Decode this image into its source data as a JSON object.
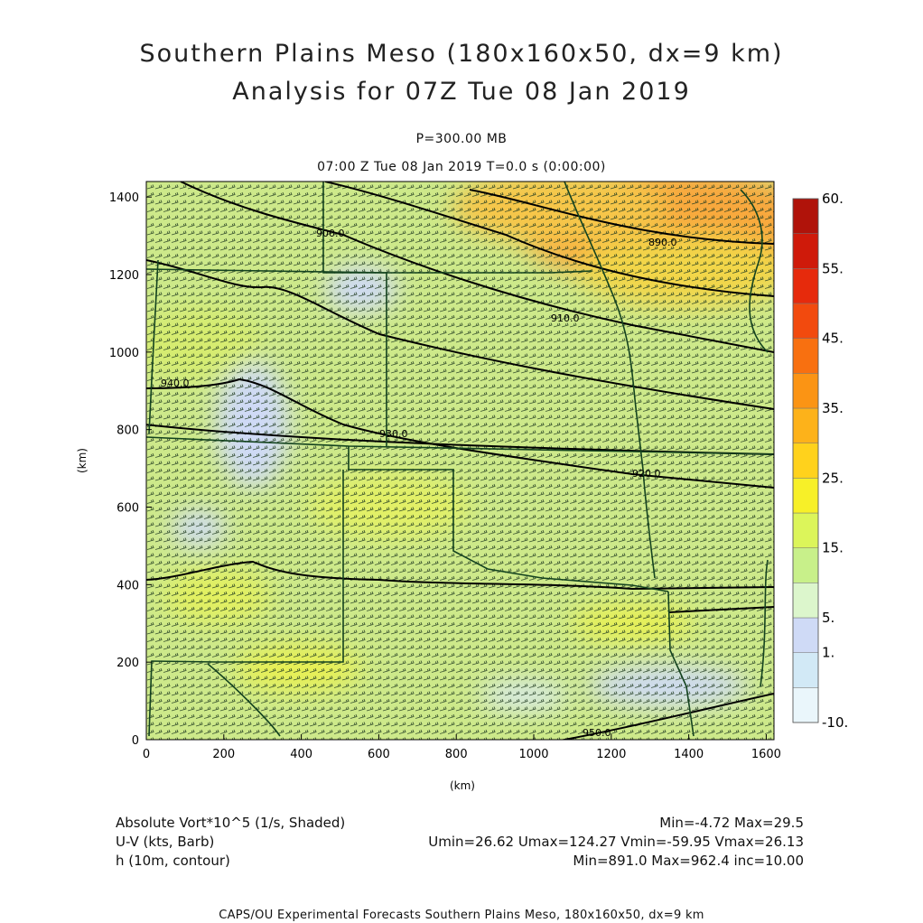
{
  "header": {
    "title": "Southern Plains Meso (180x160x50, dx=9 km)",
    "subtitle": "Analysis for 07Z Tue 08 Jan 2019",
    "level": "P=300.00 MB",
    "time": "07:00 Z Tue 08 Jan 2019    T=0.0 s (0:00:00)"
  },
  "chart_data": {
    "type": "heatmap",
    "xlabel": "(km)",
    "ylabel": "(km)",
    "xlim": [
      0,
      1620
    ],
    "ylim": [
      0,
      1440
    ],
    "x_ticks": [
      "0",
      "200",
      "400",
      "600",
      "800",
      "1000",
      "1200",
      "1400",
      "1600"
    ],
    "y_ticks": [
      "0",
      "200",
      "400",
      "600",
      "800",
      "1000",
      "1200",
      "1400"
    ],
    "colorbar": {
      "labels": [
        "-10.",
        "1.",
        "5.",
        "15.",
        "25.",
        "35.",
        "45.",
        "55.",
        "60."
      ],
      "colors": [
        "#eaf6fb",
        "#d2e9f6",
        "#cfdaf6",
        "#dcf6cc",
        "#c8f08a",
        "#dcf55a",
        "#f7f028",
        "#ffd21c",
        "#fdb21a",
        "#fb9414",
        "#f87010",
        "#f24a0e",
        "#e62a0c",
        "#cf1a0a",
        "#b0130a"
      ]
    },
    "contour_labels": [
      "890.0",
      "900.0",
      "910.0",
      "920.0",
      "930.0",
      "940.0",
      "950.0"
    ],
    "grid": false
  },
  "legend": {
    "rows": [
      {
        "left": "Absolute Vort*10^5 (1/s, Shaded)",
        "right": "Min=-4.72 Max=29.5"
      },
      {
        "left": "U-V (kts, Barb)",
        "right": "Umin=26.62 Umax=124.27 Vmin=-59.95 Vmax=26.13"
      },
      {
        "left": "h (10m, contour)",
        "right": "Min=891.0 Max=962.4 inc=10.00"
      }
    ]
  },
  "footer": "CAPS/OU Experimental Forecasts  Southern Plains Meso, 180x160x50, dx=9 km"
}
